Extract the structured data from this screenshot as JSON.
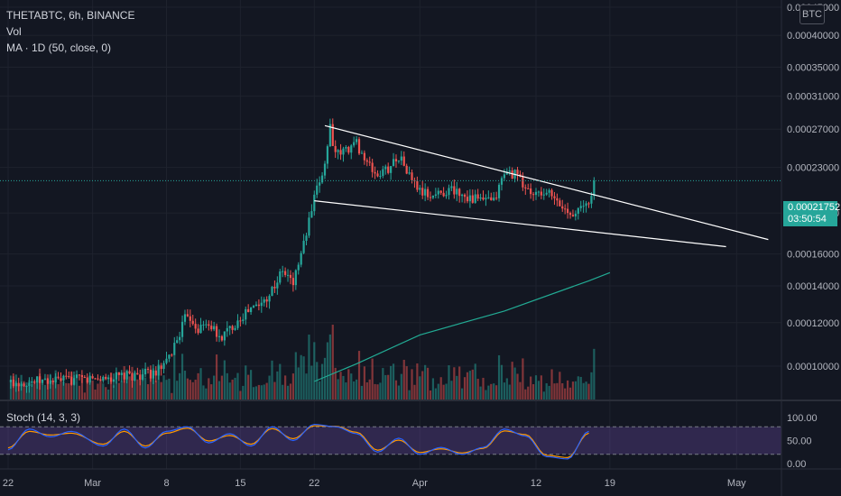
{
  "legend": {
    "symbol_line": "THETABTC, 6h, BINANCE",
    "vol_line": "Vol",
    "ma_line": "MA · 1D (50, close, 0)"
  },
  "currency_badge": "BTC",
  "current_price": {
    "value": "0.00021752",
    "countdown": "03:50:54"
  },
  "stoch": {
    "title": "Stoch (14, 3, 3)"
  },
  "colors": {
    "background": "#131722",
    "up": "#26a69a",
    "down": "#ef5350",
    "ma": "#22ab94",
    "stoch_k": "#2962ff",
    "stoch_d": "#ff9800",
    "stoch_band": "#7e57c2",
    "trendline": "#ffffff"
  },
  "chart_data": [
    {
      "type": "candlestick",
      "title": "THETABTC, 6h, BINANCE",
      "price_axis": {
        "ticks": [
          "0.00045000",
          "0.00040000",
          "0.00035000",
          "0.00031000",
          "0.00027000",
          "0.00023000",
          "0.00019000",
          "0.00016000",
          "0.00014000",
          "0.00012000",
          "0.00010000"
        ],
        "scale": "log",
        "ylim": [
          9.38e-05,
          0.00045
        ]
      },
      "time_axis": {
        "ticks": [
          "22",
          "Mar",
          "8",
          "15",
          "22",
          "Apr",
          "12",
          "19",
          "May"
        ],
        "note": "tick labels are days; Mar = 1 Mar, Apr = 1 Apr, May = 1 May"
      },
      "price_path_anchors": [
        [
          "Feb 22",
          9.35e-05
        ],
        [
          "Feb 26",
          9.4e-05
        ],
        [
          "Mar 1",
          9.48e-05
        ],
        [
          "Mar 4",
          9.57e-05
        ],
        [
          "Mar 7",
          9.73e-05
        ],
        [
          "Mar 8",
          0.000101
        ],
        [
          "Mar 9",
          0.000112
        ],
        [
          "Mar 10",
          0.000125
        ],
        [
          "Mar 11",
          0.000117
        ],
        [
          "Mar 12",
          0.00012
        ],
        [
          "Mar 13",
          0.000112
        ],
        [
          "Mar 14",
          0.000117
        ],
        [
          "Mar 15",
          0.000123
        ],
        [
          "Mar 16",
          0.000127
        ],
        [
          "Mar 17",
          0.00013
        ],
        [
          "Mar 18",
          0.000138
        ],
        [
          "Mar 19",
          0.000149
        ],
        [
          "Mar 20",
          0.000142
        ],
        [
          "Mar 21",
          0.000167
        ],
        [
          "Mar 22",
          0.000201
        ],
        [
          "Mar 23",
          0.000234
        ],
        [
          "Mar 23 12h",
          0.000274
        ],
        [
          "Mar 24",
          0.000241
        ],
        [
          "Mar 25",
          0.000248
        ],
        [
          "Mar 26",
          0.000255
        ],
        [
          "Mar 27",
          0.000233
        ],
        [
          "Mar 28",
          0.000222
        ],
        [
          "Mar 29",
          0.000229
        ],
        [
          "Mar 30",
          0.000242
        ],
        [
          "Mar 31",
          0.000222
        ],
        [
          "Apr 1",
          0.000208
        ],
        [
          "Apr 2",
          0.000204
        ],
        [
          "Apr 4",
          0.00021
        ],
        [
          "Apr 6",
          0.000202
        ],
        [
          "Apr 8",
          0.000199
        ],
        [
          "Apr 9",
          0.000225
        ],
        [
          "Apr 10",
          0.000224
        ],
        [
          "Apr 11",
          0.000211
        ],
        [
          "Apr 12",
          0.000204
        ],
        [
          "Apr 13",
          0.000208
        ],
        [
          "Apr 14",
          0.000198
        ],
        [
          "Apr 15",
          0.000191
        ],
        [
          "Apr 16",
          0.000192
        ],
        [
          "Apr 17",
          0.000198
        ],
        [
          "Apr 17 12h",
          0.00021752
        ]
      ],
      "last_close": 0.00021752,
      "trendlines": [
        {
          "name": "upper",
          "from": [
            "Mar 23",
            0.000274
          ],
          "to": [
            "May 4",
            0.00017
          ]
        },
        {
          "name": "lower",
          "from": [
            "Mar 22",
            0.0002
          ],
          "to": [
            "Apr 30",
            0.000165
          ]
        }
      ],
      "ma_series": {
        "label": "MA · 1D (50, close, 0)",
        "points": [
          [
            "Mar 22",
            9.38e-05
          ],
          [
            "Mar 26",
            0.000101
          ],
          [
            "Apr 1",
            0.000114
          ],
          [
            "Apr 9",
            0.000126
          ],
          [
            "Apr 17",
            0.000143
          ],
          [
            "Apr 19",
            0.000148
          ]
        ]
      }
    },
    {
      "type": "line",
      "title": "Stoch (14, 3, 3)",
      "y_axis": {
        "ticks": [
          "100.00",
          "50.00",
          "0.00"
        ],
        "ylim": [
          0,
          100
        ],
        "bands": [
          20,
          80
        ]
      },
      "series": [
        {
          "key": "k",
          "anchors": [
            [
              "Feb 22",
              30
            ],
            [
              "Feb 24",
              75
            ],
            [
              "Feb 26",
              58
            ],
            [
              "Feb 28",
              70
            ],
            [
              "Mar 2",
              38
            ],
            [
              "Mar 4",
              75
            ],
            [
              "Mar 6",
              34
            ],
            [
              "Mar 8",
              70
            ],
            [
              "Mar 10",
              80
            ],
            [
              "Mar 12",
              45
            ],
            [
              "Mar 14",
              65
            ],
            [
              "Mar 16",
              38
            ],
            [
              "Mar 18",
              80
            ],
            [
              "Mar 20",
              50
            ],
            [
              "Mar 22",
              85
            ],
            [
              "Mar 24",
              80
            ],
            [
              "Mar 26",
              65
            ],
            [
              "Mar 28",
              25
            ],
            [
              "Mar 30",
              55
            ],
            [
              "Apr 1",
              20
            ],
            [
              "Apr 3",
              35
            ],
            [
              "Apr 5",
              20
            ],
            [
              "Apr 7",
              35
            ],
            [
              "Apr 9",
              75
            ],
            [
              "Apr 11",
              60
            ],
            [
              "Apr 13",
              15
            ],
            [
              "Apr 15",
              10
            ],
            [
              "Apr 17",
              70
            ]
          ]
        },
        {
          "key": "d",
          "anchors": [
            [
              "Feb 22",
              34
            ],
            [
              "Feb 24",
              70
            ],
            [
              "Feb 26",
              62
            ],
            [
              "Feb 28",
              66
            ],
            [
              "Mar 2",
              42
            ],
            [
              "Mar 4",
              70
            ],
            [
              "Mar 6",
              38
            ],
            [
              "Mar 8",
              66
            ],
            [
              "Mar 10",
              77
            ],
            [
              "Mar 12",
              49
            ],
            [
              "Mar 14",
              61
            ],
            [
              "Mar 16",
              42
            ],
            [
              "Mar 18",
              76
            ],
            [
              "Mar 20",
              54
            ],
            [
              "Mar 22",
              82
            ],
            [
              "Mar 24",
              81
            ],
            [
              "Mar 26",
              68
            ],
            [
              "Mar 28",
              29
            ],
            [
              "Mar 30",
              51
            ],
            [
              "Apr 1",
              24
            ],
            [
              "Apr 3",
              32
            ],
            [
              "Apr 5",
              23
            ],
            [
              "Apr 7",
              33
            ],
            [
              "Apr 9",
              71
            ],
            [
              "Apr 11",
              63
            ],
            [
              "Apr 13",
              18
            ],
            [
              "Apr 15",
              13
            ],
            [
              "Apr 17",
              66
            ]
          ]
        }
      ]
    }
  ]
}
